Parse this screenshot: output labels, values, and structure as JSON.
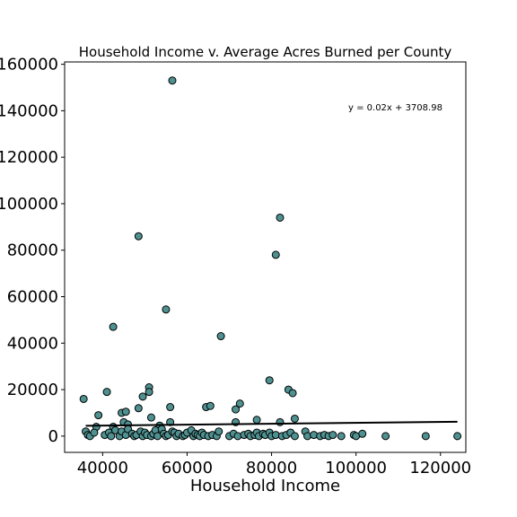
{
  "chart_data": {
    "type": "scatter",
    "title": "Household Income v. Average Acres Burned per County",
    "xlabel": "Household Income",
    "ylabel": "",
    "xlim": [
      31000,
      126000
    ],
    "ylim": [
      -7000,
      161000
    ],
    "xticks": [
      40000,
      60000,
      80000,
      100000,
      120000
    ],
    "yticks": [
      0,
      20000,
      40000,
      60000,
      80000,
      100000,
      120000,
      140000,
      160000
    ],
    "annotation": "y = 0.02x + 3708.98",
    "marker_color": "#4f9191",
    "trend_line": {
      "slope": 0.02,
      "intercept": 3708.98,
      "x_range": [
        36000,
        124000
      ]
    },
    "points": [
      [
        56500,
        153000
      ],
      [
        48500,
        86000
      ],
      [
        82000,
        94000
      ],
      [
        81000,
        78000
      ],
      [
        55000,
        54500
      ],
      [
        42500,
        47000
      ],
      [
        68000,
        43000
      ],
      [
        79500,
        24000
      ],
      [
        35500,
        16000
      ],
      [
        41000,
        19000
      ],
      [
        49500,
        17000
      ],
      [
        51000,
        21000
      ],
      [
        51000,
        19000
      ],
      [
        56000,
        12500
      ],
      [
        48500,
        12000
      ],
      [
        64500,
        12500
      ],
      [
        65500,
        13000
      ],
      [
        72500,
        14000
      ],
      [
        71500,
        11500
      ],
      [
        84000,
        20000
      ],
      [
        85000,
        18500
      ],
      [
        39000,
        9000
      ],
      [
        44500,
        10000
      ],
      [
        45500,
        10500
      ],
      [
        51500,
        8000
      ],
      [
        56000,
        6000
      ],
      [
        71500,
        6000
      ],
      [
        76500,
        7000
      ],
      [
        82000,
        6000
      ],
      [
        85500,
        7500
      ],
      [
        45000,
        6000
      ],
      [
        46000,
        5000
      ],
      [
        53500,
        4500
      ],
      [
        38500,
        4000
      ],
      [
        42500,
        4000
      ],
      [
        36000,
        2000
      ],
      [
        36500,
        500
      ],
      [
        37000,
        0
      ],
      [
        38000,
        1500
      ],
      [
        40500,
        500
      ],
      [
        41500,
        1500
      ],
      [
        42000,
        0
      ],
      [
        43000,
        2500
      ],
      [
        44000,
        0
      ],
      [
        44500,
        2000
      ],
      [
        45500,
        500
      ],
      [
        46000,
        3000
      ],
      [
        47000,
        1000
      ],
      [
        47500,
        0
      ],
      [
        48000,
        500
      ],
      [
        49000,
        2000
      ],
      [
        49500,
        0
      ],
      [
        50000,
        1500
      ],
      [
        50500,
        500
      ],
      [
        51500,
        0
      ],
      [
        52000,
        1000
      ],
      [
        52500,
        2500
      ],
      [
        53000,
        0
      ],
      [
        54000,
        3000
      ],
      [
        54500,
        1000
      ],
      [
        55000,
        0
      ],
      [
        55500,
        500
      ],
      [
        56500,
        2000
      ],
      [
        57000,
        1500
      ],
      [
        57500,
        0
      ],
      [
        58000,
        1000
      ],
      [
        59000,
        0
      ],
      [
        59500,
        500
      ],
      [
        60000,
        1500
      ],
      [
        61000,
        2500
      ],
      [
        61500,
        0
      ],
      [
        62000,
        1000
      ],
      [
        62500,
        500
      ],
      [
        63000,
        0
      ],
      [
        63500,
        1500
      ],
      [
        64000,
        500
      ],
      [
        65000,
        0
      ],
      [
        66000,
        500
      ],
      [
        67000,
        0
      ],
      [
        67500,
        2000
      ],
      [
        70000,
        0
      ],
      [
        71000,
        1000
      ],
      [
        72000,
        0
      ],
      [
        73500,
        500
      ],
      [
        74500,
        1000
      ],
      [
        75000,
        0
      ],
      [
        76000,
        500
      ],
      [
        76500,
        1500
      ],
      [
        77000,
        0
      ],
      [
        78000,
        1000
      ],
      [
        78500,
        500
      ],
      [
        79500,
        1500
      ],
      [
        80000,
        0
      ],
      [
        81000,
        500
      ],
      [
        82500,
        0
      ],
      [
        83500,
        500
      ],
      [
        84500,
        1500
      ],
      [
        85500,
        0
      ],
      [
        88000,
        2000
      ],
      [
        88500,
        0
      ],
      [
        90000,
        500
      ],
      [
        91500,
        0
      ],
      [
        92500,
        500
      ],
      [
        93500,
        0
      ],
      [
        94500,
        500
      ],
      [
        96500,
        0
      ],
      [
        99500,
        500
      ],
      [
        100000,
        0
      ],
      [
        101500,
        1000
      ],
      [
        107000,
        0
      ],
      [
        116500,
        0
      ],
      [
        124000,
        0
      ]
    ]
  }
}
